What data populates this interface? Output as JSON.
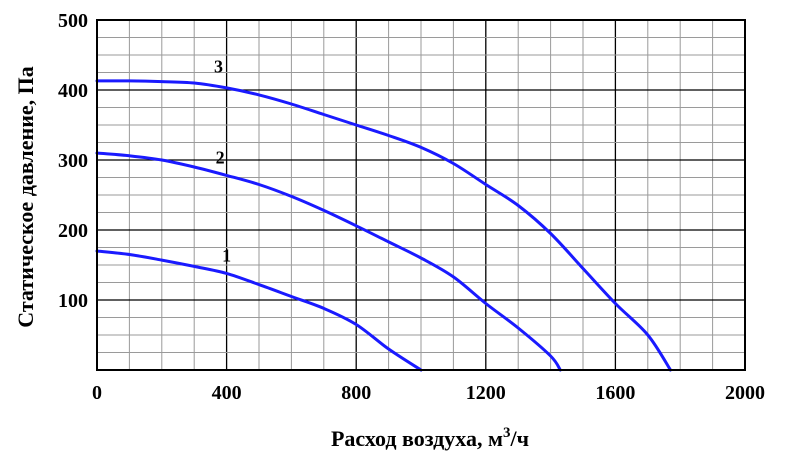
{
  "chart_data": {
    "type": "line",
    "title": "",
    "xlabel": "Расход воздуха, м",
    "xlabel_sup": "3",
    "xlabel_suffix": "/ч",
    "ylabel": "Статическое давление, Па",
    "xlim": [
      0,
      2000
    ],
    "ylim": [
      0,
      500
    ],
    "x_ticks": [
      0,
      400,
      800,
      1200,
      1600,
      2000
    ],
    "x_tick_labels": [
      "0",
      "400",
      "800",
      "1200",
      "1600",
      "2000"
    ],
    "y_ticks": [
      100,
      200,
      300,
      400,
      500
    ],
    "y_tick_labels": [
      "100",
      "200",
      "300",
      "400",
      "500"
    ],
    "grid": true,
    "line_color": "#1a1aff",
    "series": [
      {
        "label": "1",
        "points": [
          [
            0,
            170
          ],
          [
            100,
            165
          ],
          [
            200,
            157
          ],
          [
            300,
            148
          ],
          [
            400,
            138
          ],
          [
            500,
            122
          ],
          [
            600,
            105
          ],
          [
            700,
            88
          ],
          [
            800,
            65
          ],
          [
            900,
            30
          ],
          [
            1000,
            0
          ]
        ]
      },
      {
        "label": "2",
        "points": [
          [
            0,
            310
          ],
          [
            100,
            306
          ],
          [
            200,
            300
          ],
          [
            300,
            290
          ],
          [
            400,
            278
          ],
          [
            500,
            265
          ],
          [
            600,
            248
          ],
          [
            700,
            228
          ],
          [
            800,
            206
          ],
          [
            900,
            183
          ],
          [
            1000,
            160
          ],
          [
            1100,
            133
          ],
          [
            1200,
            95
          ],
          [
            1300,
            60
          ],
          [
            1400,
            20
          ],
          [
            1430,
            0
          ]
        ]
      },
      {
        "label": "3",
        "points": [
          [
            0,
            413
          ],
          [
            100,
            413
          ],
          [
            200,
            412
          ],
          [
            300,
            410
          ],
          [
            400,
            403
          ],
          [
            500,
            393
          ],
          [
            600,
            380
          ],
          [
            700,
            365
          ],
          [
            800,
            350
          ],
          [
            900,
            335
          ],
          [
            1000,
            318
          ],
          [
            1100,
            295
          ],
          [
            1200,
            265
          ],
          [
            1300,
            235
          ],
          [
            1400,
            195
          ],
          [
            1500,
            145
          ],
          [
            1600,
            95
          ],
          [
            1700,
            50
          ],
          [
            1770,
            0
          ]
        ]
      }
    ]
  }
}
